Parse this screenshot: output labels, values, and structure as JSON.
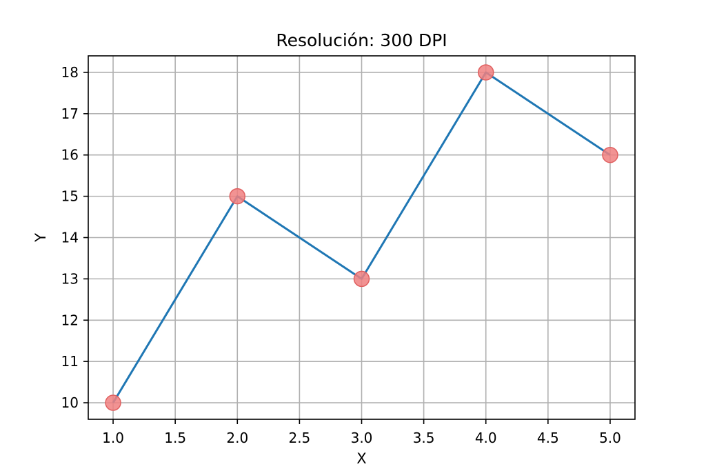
{
  "chart_data": {
    "type": "line",
    "title": "Resolución: 300 DPI",
    "xlabel": "X",
    "ylabel": "Y",
    "x": [
      1.0,
      2.0,
      3.0,
      4.0,
      5.0
    ],
    "series": [
      {
        "values": [
          10,
          15,
          13,
          18,
          16
        ]
      }
    ],
    "xlim": [
      0.8,
      5.2
    ],
    "ylim": [
      9.6,
      18.4
    ],
    "xticks": [
      "1.0",
      "1.5",
      "2.0",
      "2.5",
      "3.0",
      "3.5",
      "4.0",
      "4.5",
      "5.0"
    ],
    "yticks": [
      "10",
      "11",
      "12",
      "13",
      "14",
      "15",
      "16",
      "17",
      "18"
    ],
    "grid": true,
    "markers": "circle",
    "line_color": "#1f77b4",
    "marker_color": "#f08080",
    "marker_edge_color": "#e06060"
  }
}
